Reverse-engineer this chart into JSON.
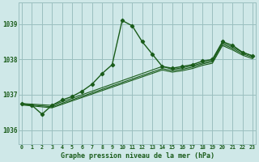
{
  "title": "Graphe pression niveau de la mer (hPa)",
  "bg_color": "#cfe8e8",
  "grid_color": "#9bbfbf",
  "line_color": "#1a5c1a",
  "x_ticks": [
    0,
    1,
    2,
    3,
    4,
    5,
    6,
    7,
    8,
    9,
    10,
    11,
    12,
    13,
    14,
    15,
    16,
    17,
    18,
    19,
    20,
    21,
    22,
    23
  ],
  "y_ticks": [
    1036,
    1037,
    1038,
    1039
  ],
  "ylim": [
    1035.6,
    1039.6
  ],
  "xlim": [
    -0.3,
    23.3
  ],
  "series": [
    {
      "x": [
        0,
        1,
        2,
        3,
        4,
        5,
        6,
        7,
        8,
        9,
        10,
        11,
        12,
        13,
        14,
        15,
        16,
        17,
        18,
        19,
        20,
        21,
        22,
        23
      ],
      "y": [
        1036.75,
        1036.7,
        1036.45,
        1036.7,
        1036.85,
        1036.95,
        1037.1,
        1037.3,
        1037.6,
        1037.85,
        1039.1,
        1038.95,
        1038.5,
        1038.15,
        1037.8,
        1037.75,
        1037.8,
        1037.85,
        1037.95,
        1038.0,
        1038.5,
        1038.4,
        1038.2,
        1038.1
      ],
      "marker": true,
      "lw": 1.0
    },
    {
      "x": [
        0,
        3,
        14,
        15,
        16,
        17,
        18,
        19,
        20,
        21,
        22,
        23
      ],
      "y": [
        1036.75,
        1036.7,
        1037.8,
        1037.72,
        1037.76,
        1037.82,
        1037.9,
        1037.97,
        1038.47,
        1038.35,
        1038.2,
        1038.1
      ],
      "marker": false,
      "lw": 0.8
    },
    {
      "x": [
        0,
        3,
        14,
        15,
        16,
        17,
        18,
        19,
        20,
        21,
        22,
        23
      ],
      "y": [
        1036.73,
        1036.66,
        1037.74,
        1037.68,
        1037.72,
        1037.78,
        1037.87,
        1037.93,
        1038.43,
        1038.31,
        1038.16,
        1038.06
      ],
      "marker": false,
      "lw": 0.8
    },
    {
      "x": [
        0,
        3,
        14,
        15,
        16,
        17,
        18,
        19,
        20,
        21,
        22,
        23
      ],
      "y": [
        1036.71,
        1036.63,
        1037.7,
        1037.64,
        1037.68,
        1037.74,
        1037.83,
        1037.89,
        1038.39,
        1038.27,
        1038.12,
        1038.02
      ],
      "marker": false,
      "lw": 0.8
    }
  ]
}
